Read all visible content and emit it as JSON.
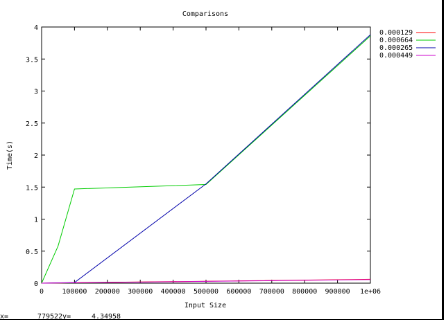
{
  "window": {
    "background": "#ffffff"
  },
  "status_bar": {
    "x_label": "x=",
    "x_value": "779522",
    "y_label": "y=",
    "y_value": "4.34958"
  },
  "chart_data": {
    "type": "line",
    "title": "Comparisons",
    "xlabel": "Input Size",
    "ylabel": "Time(s)",
    "xlim": [
      0,
      1000000
    ],
    "ylim": [
      0,
      4
    ],
    "grid": false,
    "legend_placement": "outside-right",
    "xticks": [
      {
        "value": 0,
        "label": "0"
      },
      {
        "value": 100000,
        "label": "100000"
      },
      {
        "value": 200000,
        "label": "200000"
      },
      {
        "value": 300000,
        "label": "300000"
      },
      {
        "value": 400000,
        "label": "400000"
      },
      {
        "value": 500000,
        "label": "500000"
      },
      {
        "value": 600000,
        "label": "600000"
      },
      {
        "value": 700000,
        "label": "700000"
      },
      {
        "value": 800000,
        "label": "800000"
      },
      {
        "value": 900000,
        "label": "900000"
      },
      {
        "value": 1000000,
        "label": "1e+06"
      }
    ],
    "yticks": [
      {
        "value": 0,
        "label": "0"
      },
      {
        "value": 0.5,
        "label": "0.5"
      },
      {
        "value": 1,
        "label": "1"
      },
      {
        "value": 1.5,
        "label": "1.5"
      },
      {
        "value": 2,
        "label": "2"
      },
      {
        "value": 2.5,
        "label": "2.5"
      },
      {
        "value": 3,
        "label": "3"
      },
      {
        "value": 3.5,
        "label": "3.5"
      },
      {
        "value": 4,
        "label": "4"
      }
    ],
    "series": [
      {
        "name": "0.000129",
        "color": "#ff0000",
        "x": [
          0,
          100000,
          500000,
          1000000
        ],
        "y": [
          0,
          0.006,
          0.03,
          0.06
        ]
      },
      {
        "name": "0.000664",
        "color": "#00cc00",
        "x": [
          0,
          50000,
          100000,
          500000,
          1000000
        ],
        "y": [
          0,
          0.58,
          1.47,
          1.54,
          3.86
        ]
      },
      {
        "name": "0.000265",
        "color": "#0000aa",
        "x": [
          0,
          100000,
          500000,
          1000000
        ],
        "y": [
          0,
          0.01,
          1.55,
          3.88
        ]
      },
      {
        "name": "0.000449",
        "color": "#cc00cc",
        "x": [
          0,
          100000,
          500000,
          1000000
        ],
        "y": [
          0,
          0.006,
          0.028,
          0.055
        ]
      }
    ]
  }
}
